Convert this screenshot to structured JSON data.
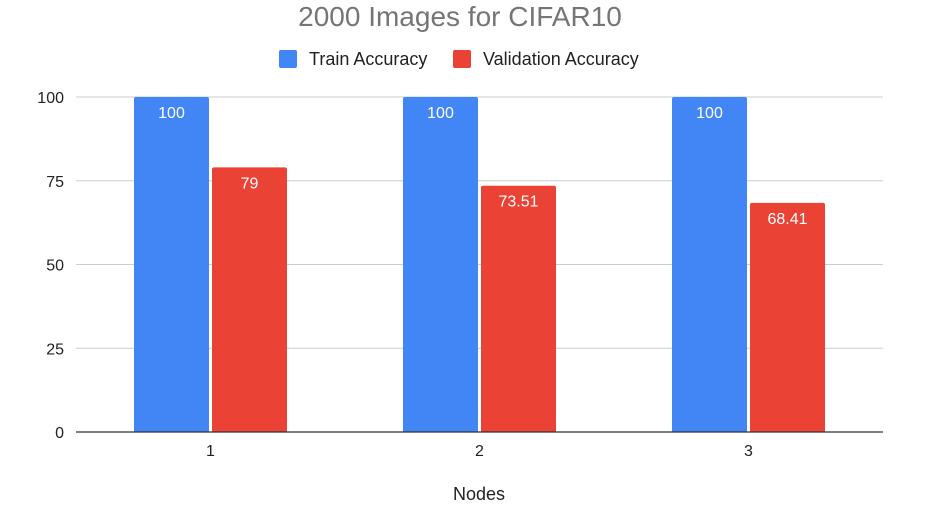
{
  "chart_data": {
    "type": "bar",
    "title": "2000 Images for CIFAR10",
    "xlabel": "Nodes",
    "ylabel": "",
    "categories": [
      "1",
      "2",
      "3"
    ],
    "series": [
      {
        "name": "Train Accuracy",
        "color": "#4285f4",
        "values": [
          100,
          100,
          100
        ],
        "labels": [
          "100",
          "100",
          "100"
        ]
      },
      {
        "name": "Validation Accuracy",
        "color": "#ea4335",
        "values": [
          79,
          73.51,
          68.41
        ],
        "labels": [
          "79",
          "73.51",
          "68.41"
        ]
      }
    ],
    "yticks": [
      "0",
      "25",
      "50",
      "75",
      "100"
    ],
    "ylim": [
      0,
      100
    ],
    "grid": true,
    "legend_position": "top"
  }
}
